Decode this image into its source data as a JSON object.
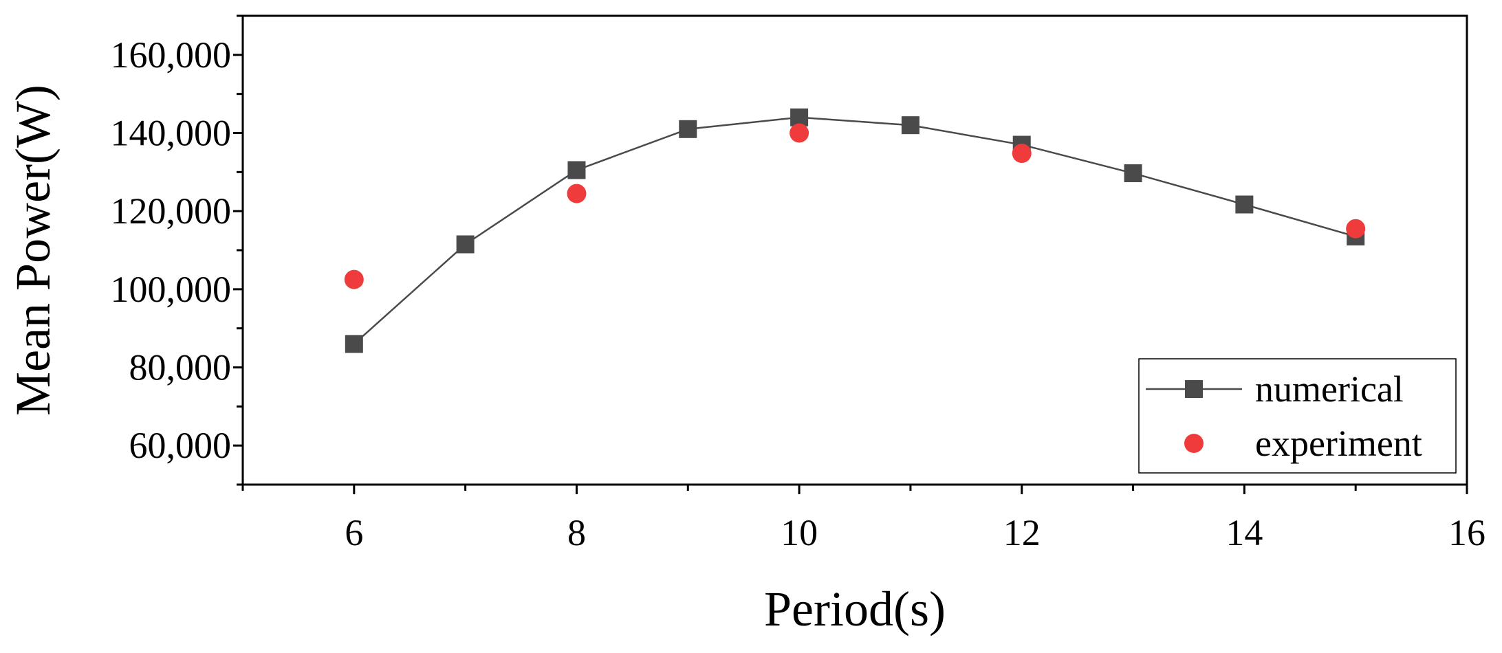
{
  "chart_data": {
    "type": "line",
    "title": "",
    "xlabel": "Period(s)",
    "ylabel": "Mean Power(W)",
    "xlim": [
      5,
      16
    ],
    "ylim": [
      50000,
      170000
    ],
    "x_ticks": [
      6,
      8,
      10,
      12,
      14,
      16
    ],
    "x_tick_labels": [
      "6",
      "8",
      "10",
      "12",
      "14",
      "16"
    ],
    "y_ticks": [
      60000,
      80000,
      100000,
      120000,
      140000,
      160000
    ],
    "y_tick_labels": [
      "60,000",
      "80,000",
      "100,000",
      "120,000",
      "140,000",
      "160,000"
    ],
    "grid": false,
    "legend_position": "bottom-right",
    "series": [
      {
        "name": "numerical",
        "marker": "square",
        "line": true,
        "color": "#4a4a4a",
        "x": [
          6,
          7,
          8,
          9,
          10,
          11,
          12,
          13,
          14,
          15
        ],
        "values": [
          86000,
          111500,
          130500,
          141000,
          144000,
          142000,
          137000,
          129700,
          121700,
          113500
        ]
      },
      {
        "name": "experiment",
        "marker": "circle",
        "line": false,
        "color": "#ef3b3b",
        "x": [
          6,
          8,
          10,
          12,
          15
        ],
        "values": [
          102500,
          124500,
          140000,
          134800,
          115500
        ]
      }
    ]
  }
}
